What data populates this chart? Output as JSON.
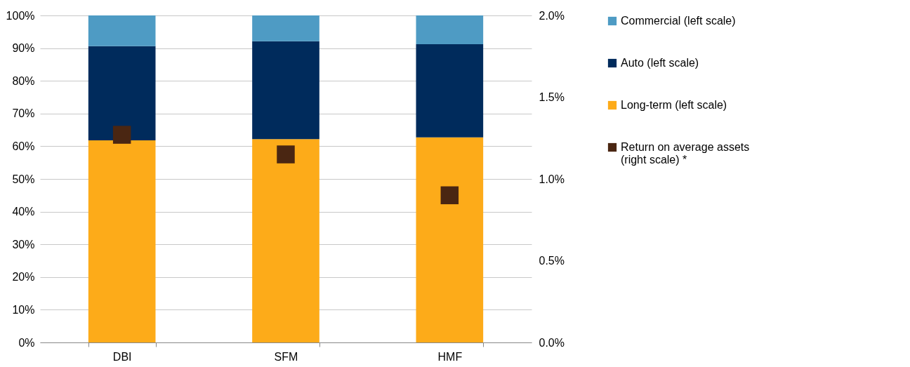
{
  "chart_data": {
    "type": "bar",
    "stacked": true,
    "categories": [
      "DBI",
      "SFM",
      "HMF"
    ],
    "series": [
      {
        "name": "Long-term (left scale)",
        "color": "#fdab19",
        "values": [
          61.8,
          62.2,
          62.7
        ]
      },
      {
        "name": "Auto (left scale)",
        "color": "#002b5c",
        "values": [
          28.8,
          29.9,
          28.5
        ]
      },
      {
        "name": "Commercial (left scale)",
        "color": "#4e9bc4",
        "values": [
          9.4,
          7.9,
          8.8
        ]
      },
      {
        "name": "Return on average assets (right scale) *",
        "color": "#4a2612",
        "type": "scatter",
        "axis": "y2",
        "values": [
          1.27,
          1.15,
          0.9
        ]
      }
    ],
    "ylim": [
      0,
      100
    ],
    "yticks": [
      {
        "value": 0,
        "label": "0%"
      },
      {
        "value": 10,
        "label": "10%"
      },
      {
        "value": 20,
        "label": "20%"
      },
      {
        "value": 30,
        "label": "30%"
      },
      {
        "value": 40,
        "label": "40%"
      },
      {
        "value": 50,
        "label": "50%"
      },
      {
        "value": 60,
        "label": "60%"
      },
      {
        "value": 70,
        "label": "70%"
      },
      {
        "value": 80,
        "label": "80%"
      },
      {
        "value": 90,
        "label": "90%"
      },
      {
        "value": 100,
        "label": "100%"
      }
    ],
    "y2lim": [
      0,
      2
    ],
    "y2ticks": [
      {
        "value": 0,
        "label": "0.0%"
      },
      {
        "value": 0.5,
        "label": "0.5%"
      },
      {
        "value": 1,
        "label": "1.0%"
      },
      {
        "value": 1.5,
        "label": "1.5%"
      },
      {
        "value": 2,
        "label": "2.0%"
      }
    ],
    "grid": "y",
    "legend": "right",
    "marker": "square"
  }
}
